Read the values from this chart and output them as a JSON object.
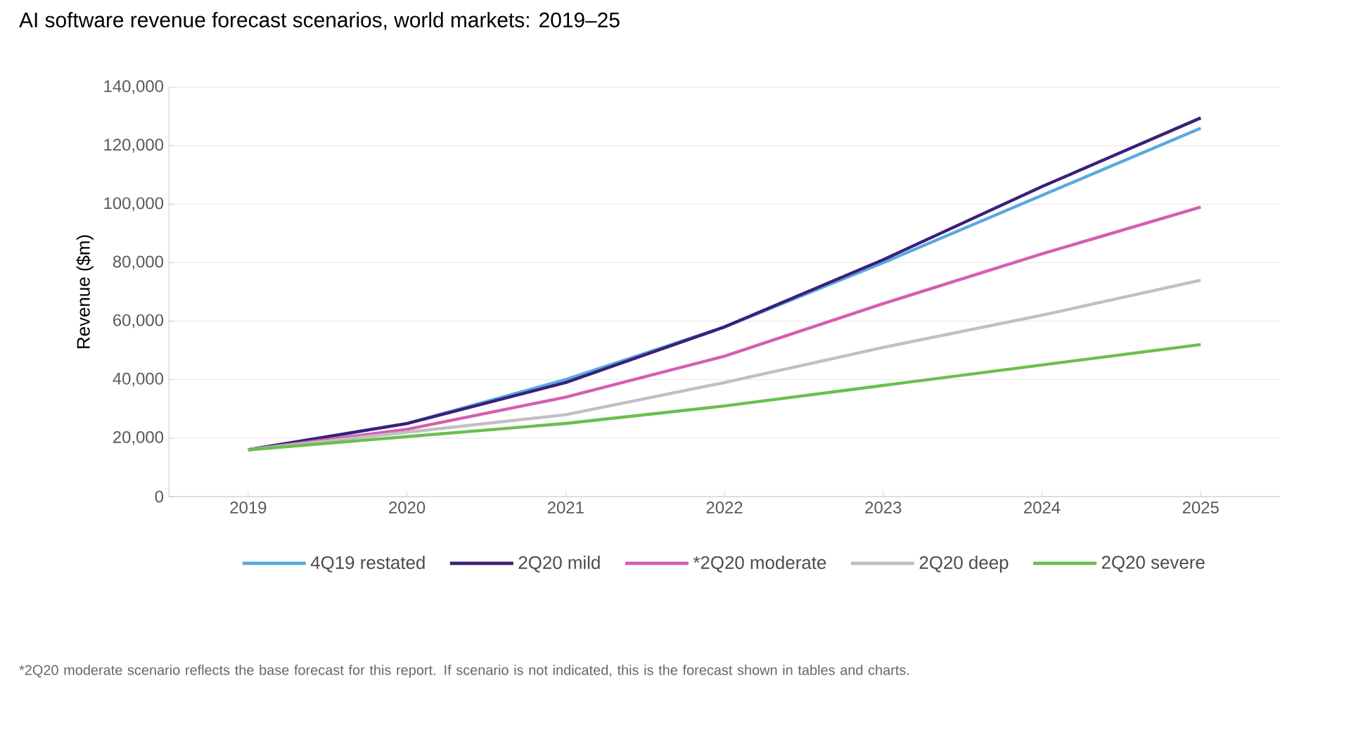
{
  "chart_data": {
    "type": "line",
    "title": "AI software revenue forecast scenarios, world markets: 2019–25",
    "ylabel": "Revenue ($m)",
    "categories": [
      "2019",
      "2020",
      "2021",
      "2022",
      "2023",
      "2024",
      "2025"
    ],
    "series": [
      {
        "name": "4Q19 restated",
        "color": "#5aa9e0",
        "values": [
          16000,
          25000,
          40000,
          58000,
          80000,
          103000,
          126000
        ]
      },
      {
        "name": "2Q20 mild",
        "color": "#3b1f7a",
        "values": [
          16000,
          25000,
          39000,
          58000,
          81000,
          106000,
          129500
        ]
      },
      {
        "name": "*2Q20 moderate",
        "color": "#d45fb0",
        "values": [
          16000,
          23000,
          34000,
          48000,
          66000,
          83000,
          99000
        ]
      },
      {
        "name": "2Q20 deep",
        "color": "#c0c0c0",
        "values": [
          16000,
          22000,
          28000,
          39000,
          51000,
          62000,
          74000
        ]
      },
      {
        "name": "2Q20 severe",
        "color": "#6bbf4e",
        "values": [
          16000,
          20500,
          25000,
          31000,
          38000,
          45000,
          52000
        ]
      }
    ],
    "ylim": [
      0,
      140000
    ],
    "yticks": [
      {
        "value": 0,
        "label": "0"
      },
      {
        "value": 20000,
        "label": "20,000"
      },
      {
        "value": 40000,
        "label": "40,000"
      },
      {
        "value": 60000,
        "label": "60,000"
      },
      {
        "value": 80000,
        "label": "80,000"
      },
      {
        "value": 100000,
        "label": "100,000"
      },
      {
        "value": 120000,
        "label": "120,000"
      },
      {
        "value": 140000,
        "label": "140,000"
      }
    ],
    "grid": "y",
    "legend": "bottom",
    "marker": "none",
    "line_style": "solid",
    "annotations": [
      "*2Q20 moderate scenario reflects the base forecast for this report. If scenario is not indicated, this is the forecast shown in tables and charts."
    ]
  }
}
